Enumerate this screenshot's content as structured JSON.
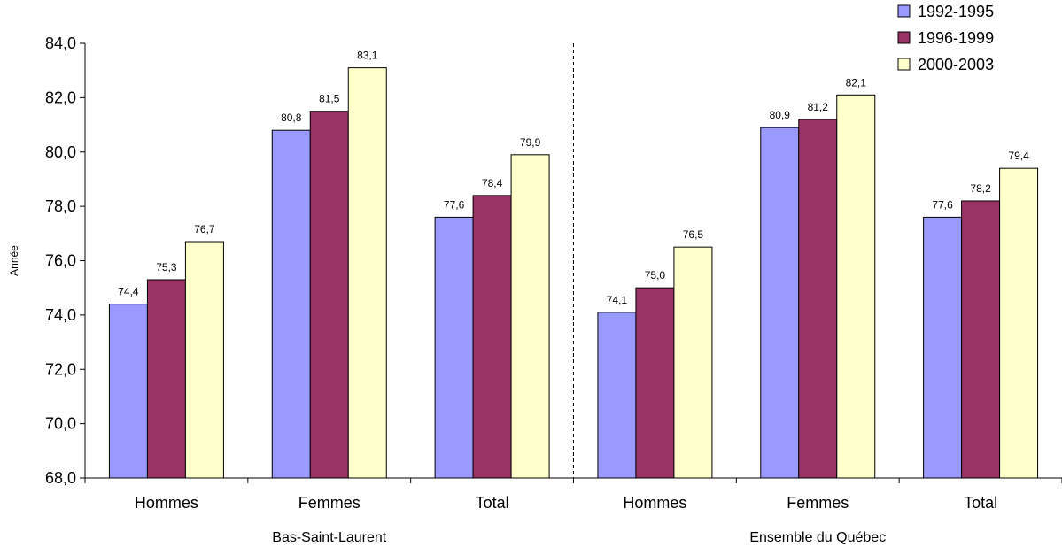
{
  "chart_data": {
    "type": "bar",
    "ylabel": "Année",
    "xlabel": "",
    "ylim": [
      68,
      84
    ],
    "yticks": [
      68,
      70,
      72,
      74,
      76,
      78,
      80,
      82,
      84
    ],
    "ytick_labels": [
      "68,0",
      "70,0",
      "72,0",
      "74,0",
      "76,0",
      "78,0",
      "80,0",
      "82,0",
      "84,0"
    ],
    "grid": false,
    "legend_position": "top-right",
    "groups": [
      {
        "name": "Bas-Saint-Laurent",
        "categories": [
          "Hommes",
          "Femmes",
          "Total"
        ]
      },
      {
        "name": "Ensemble du Québec",
        "categories": [
          "Hommes",
          "Femmes",
          "Total"
        ]
      }
    ],
    "categories": [
      "Hommes",
      "Femmes",
      "Total",
      "Hommes",
      "Femmes",
      "Total"
    ],
    "series": [
      {
        "name": "1992-1995",
        "color": "#9999FF",
        "values": [
          74.4,
          80.8,
          77.6,
          74.1,
          80.9,
          77.6
        ],
        "labels": [
          "74,4",
          "80,8",
          "77,6",
          "74,1",
          "80,9",
          "77,6"
        ]
      },
      {
        "name": "1996-1999",
        "color": "#993366",
        "values": [
          75.3,
          81.5,
          78.4,
          75.0,
          81.2,
          78.2
        ],
        "labels": [
          "75,3",
          "81,5",
          "78,4",
          "75,0",
          "81,2",
          "78,2"
        ]
      },
      {
        "name": "2000-2003",
        "color": "#FFFFCC",
        "values": [
          76.7,
          83.1,
          79.9,
          76.5,
          82.1,
          79.4
        ],
        "labels": [
          "76,7",
          "83,1",
          "79,9",
          "76,5",
          "82,1",
          "79,4"
        ]
      }
    ]
  }
}
